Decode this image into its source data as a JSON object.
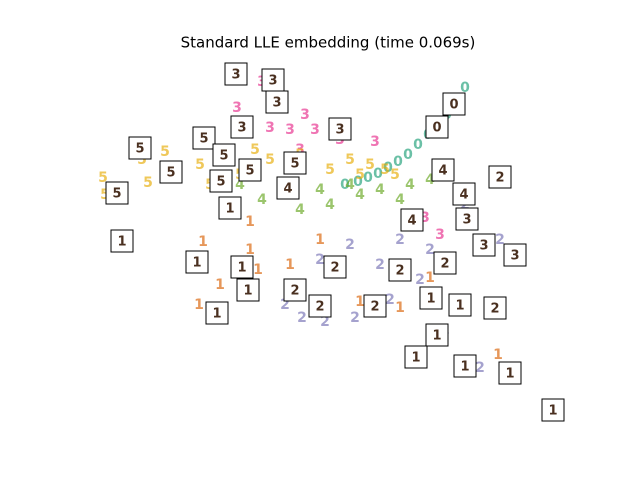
{
  "chart_data": {
    "type": "scatter",
    "title": "Standard LLE embedding (time 0.069s)",
    "xlim": [
      0,
      496
    ],
    "ylim": [
      0,
      369
    ],
    "series": [
      {
        "name": "0",
        "color": "#1b9e77",
        "x": [
          385,
          375,
          367,
          358,
          348,
          338,
          328,
          318,
          308,
          298,
          288,
          278,
          265
        ],
        "y": [
          339,
          324,
          312,
          302,
          292,
          282,
          272,
          265,
          259,
          253,
          249,
          245,
          242
        ]
      },
      {
        "name": "1",
        "color": "#d95f02",
        "x": [
          123,
          119,
          140,
          119,
          170,
          178,
          210,
          240,
          280,
          320,
          350,
          418,
          435,
          170
        ],
        "y": [
          185,
          165,
          142,
          122,
          205,
          157,
          162,
          187,
          125,
          119,
          149,
          72,
          55,
          177
        ]
      },
      {
        "name": "2",
        "color": "#7570b3",
        "x": [
          205,
          222,
          245,
          275,
          260,
          300,
          320,
          340,
          365,
          400,
          385,
          420,
          310,
          240,
          270,
          350,
          380
        ],
        "y": [
          122,
          109,
          105,
          109,
          157,
          162,
          187,
          147,
          97,
          59,
          222,
          187,
          127,
          167,
          182,
          177,
          127
        ]
      },
      {
        "name": "3",
        "color": "#e7298a",
        "x": [
          157,
          182,
          200,
          225,
          210,
          235,
          295,
          345,
          360,
          398,
          220,
          190,
          260
        ],
        "y": [
          319,
          345,
          327,
          312,
          297,
          297,
          285,
          209,
          192,
          177,
          277,
          299,
          287
        ]
      },
      {
        "name": "4",
        "color": "#66a61e",
        "x": [
          182,
          160,
          210,
          240,
          270,
          300,
          330,
          350,
          365,
          380,
          390,
          220,
          250,
          320,
          280
        ],
        "y": [
          227,
          242,
          242,
          237,
          242,
          237,
          242,
          247,
          262,
          237,
          227,
          217,
          222,
          227,
          232
        ]
      },
      {
        "name": "5",
        "color": "#e6ab02",
        "x": [
          85,
          62,
          23,
          68,
          25,
          120,
          130,
          145,
          175,
          190,
          160,
          220,
          270,
          290,
          280,
          305,
          315,
          250
        ],
        "y": [
          275,
          267,
          249,
          244,
          232,
          262,
          242,
          277,
          277,
          267,
          252,
          272,
          267,
          262,
          252,
          257,
          252,
          257
        ]
      }
    ],
    "thumbnails": [
      {
        "label": "1",
        "x": 42,
        "y": 186
      },
      {
        "label": "1",
        "x": 117,
        "y": 165
      },
      {
        "label": "1",
        "x": 137,
        "y": 114
      },
      {
        "label": "1",
        "x": 168,
        "y": 137
      },
      {
        "label": "1",
        "x": 162,
        "y": 160
      },
      {
        "label": "1",
        "x": 150,
        "y": 219
      },
      {
        "label": "1",
        "x": 357,
        "y": 92
      },
      {
        "label": "1",
        "x": 336,
        "y": 70
      },
      {
        "label": "1",
        "x": 385,
        "y": 61
      },
      {
        "label": "1",
        "x": 430,
        "y": 54
      },
      {
        "label": "1",
        "x": 473,
        "y": 17
      },
      {
        "label": "1",
        "x": 380,
        "y": 122
      },
      {
        "label": "1",
        "x": 351,
        "y": 129
      },
      {
        "label": "2",
        "x": 420,
        "y": 250
      },
      {
        "label": "2",
        "x": 415,
        "y": 119
      },
      {
        "label": "2",
        "x": 295,
        "y": 121
      },
      {
        "label": "2",
        "x": 240,
        "y": 121
      },
      {
        "label": "2",
        "x": 215,
        "y": 137
      },
      {
        "label": "2",
        "x": 365,
        "y": 164
      },
      {
        "label": "2",
        "x": 320,
        "y": 157
      },
      {
        "label": "2",
        "x": 255,
        "y": 160
      },
      {
        "label": "3",
        "x": 156,
        "y": 353
      },
      {
        "label": "3",
        "x": 193,
        "y": 347
      },
      {
        "label": "3",
        "x": 197,
        "y": 325
      },
      {
        "label": "3",
        "x": 162,
        "y": 300
      },
      {
        "label": "3",
        "x": 260,
        "y": 298
      },
      {
        "label": "3",
        "x": 404,
        "y": 182
      },
      {
        "label": "3",
        "x": 435,
        "y": 172
      },
      {
        "label": "3",
        "x": 387,
        "y": 208
      },
      {
        "label": "4",
        "x": 384,
        "y": 233
      },
      {
        "label": "4",
        "x": 363,
        "y": 257
      },
      {
        "label": "4",
        "x": 332,
        "y": 207
      },
      {
        "label": "4",
        "x": 208,
        "y": 239
      },
      {
        "label": "5",
        "x": 60,
        "y": 279
      },
      {
        "label": "5",
        "x": 37,
        "y": 234
      },
      {
        "label": "5",
        "x": 91,
        "y": 255
      },
      {
        "label": "5",
        "x": 124,
        "y": 289
      },
      {
        "label": "5",
        "x": 144,
        "y": 272
      },
      {
        "label": "5",
        "x": 141,
        "y": 246
      },
      {
        "label": "5",
        "x": 170,
        "y": 257
      },
      {
        "label": "5",
        "x": 215,
        "y": 264
      },
      {
        "label": "0",
        "x": 374,
        "y": 323
      },
      {
        "label": "0",
        "x": 357,
        "y": 300
      }
    ]
  }
}
